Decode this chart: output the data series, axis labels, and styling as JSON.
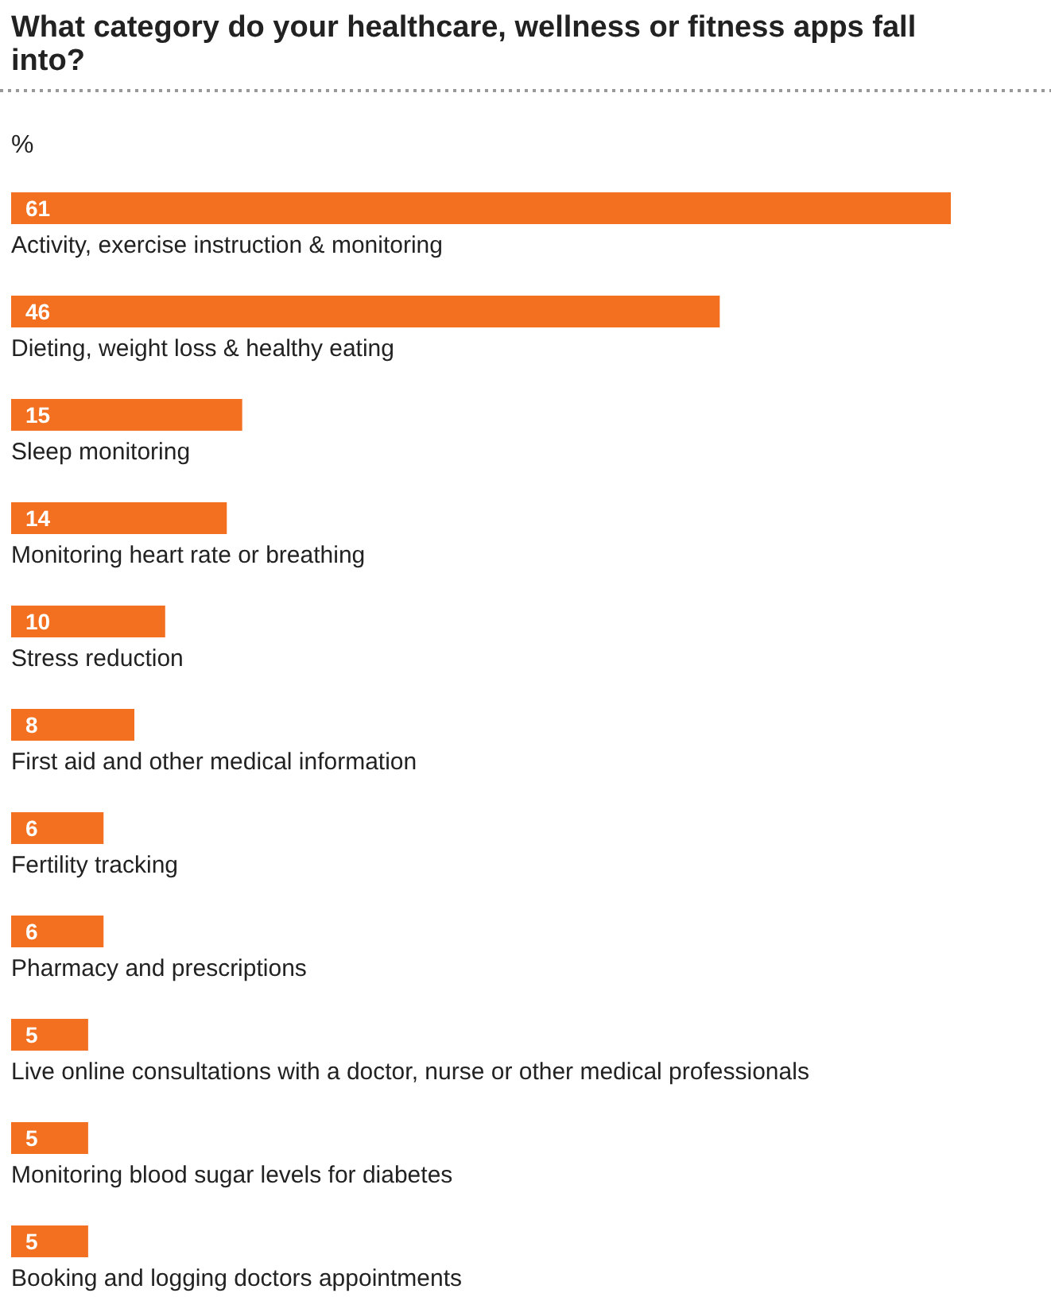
{
  "chart_data": {
    "type": "bar",
    "orientation": "horizontal",
    "title": "What category do your healthcare, wellness or fitness apps fall into?",
    "xlabel": "%",
    "categories": [
      "Activity, exercise instruction & monitoring",
      "Dieting, weight loss & healthy eating",
      "Sleep monitoring",
      "Monitoring heart rate or breathing",
      "Stress reduction",
      "First aid and other medical information",
      "Fertility tracking",
      "Pharmacy and prescriptions",
      "Live online consultations with a doctor, nurse or other medical professionals",
      "Monitoring blood sugar levels for diabetes",
      "Booking and logging doctors appointments"
    ],
    "values": [
      61,
      46,
      15,
      14,
      10,
      8,
      6,
      6,
      5,
      5,
      5
    ],
    "color": "#f37021",
    "data_labels": true
  }
}
